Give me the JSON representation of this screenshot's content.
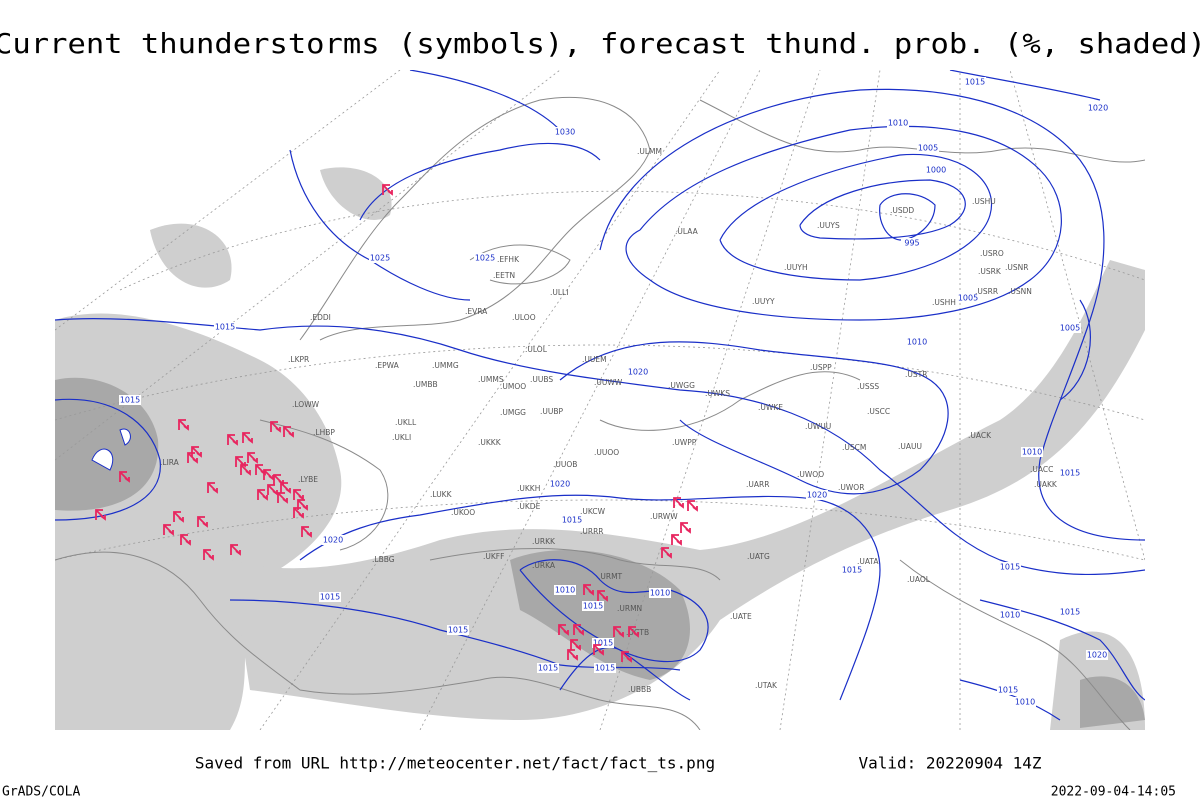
{
  "header": {
    "title": "Current thunderstorms (symbols), forecast thund. prob. (%, shaded)"
  },
  "map": {
    "isobar_labels": [
      "1030",
      "1025",
      "1025",
      "1015",
      "1015",
      "1020",
      "1015",
      "1015",
      "1015",
      "1015",
      "1010",
      "1015",
      "1015",
      "1010",
      "1020",
      "1015",
      "1020",
      "1020",
      "1015",
      "1010",
      "1005",
      "1000",
      "995",
      "1005",
      "1010",
      "1005",
      "1010",
      "1015",
      "1015",
      "1010",
      "1015",
      "1020",
      "1015",
      "1010",
      "1015",
      "1020"
    ],
    "station_labels": [
      ".LIRA",
      ".LYBE",
      ".LHBP",
      ".LKPR",
      ".EPWA",
      ".UMMG",
      ".UMBB",
      ".UMMS",
      ".UMOO",
      ".UUBS",
      ".UKLL",
      ".UKLI",
      ".UMGG",
      ".UUBP",
      ".UUEM",
      ".UUWW",
      ".UWGG",
      ".UWKS",
      ".UKKK",
      ".UUOO",
      ".UWPP",
      ".UUOB",
      ".UKKH",
      ".UKDE",
      ".UKCW",
      ".UKOO",
      ".LUKK",
      ".URRR",
      ".URWW",
      ".URKK",
      ".UKFF",
      ".URKA",
      ".URMT",
      ".URMN",
      ".UGTB",
      ".UBBB",
      ".UTAK",
      ".UATE",
      ".UATG",
      ".UATA",
      ".UAOL",
      ".UACC",
      ".UAKK",
      ".UACK",
      ".USCC",
      ".USSS",
      ".USCM",
      ".UAUU",
      ".UWOO",
      ".UWOR",
      ".UARR",
      ".UWKE",
      ".UWUU",
      ".USPP",
      ".USTR",
      ".UUYY",
      ".UUYH",
      ".ULAA",
      ".UUYS",
      ".USDD",
      ".USHU",
      ".USRO",
      ".USRK",
      ".USNR",
      ".USRR",
      ".USNN",
      ".USHH",
      ".ULMM",
      ".EFHK",
      ".ULLI",
      ".EETN",
      ".EVRA",
      ".ULOO",
      ".ULOL",
      ".EDDI",
      ".LOWW",
      ".LBBG"
    ]
  },
  "footer": {
    "source": "Saved from URL http://meteocenter.net/fact/fact_ts.png",
    "valid": "Valid: 20220904 14Z",
    "software": "GrADS/COLA",
    "timestamp": "2022-09-04-14:05"
  }
}
